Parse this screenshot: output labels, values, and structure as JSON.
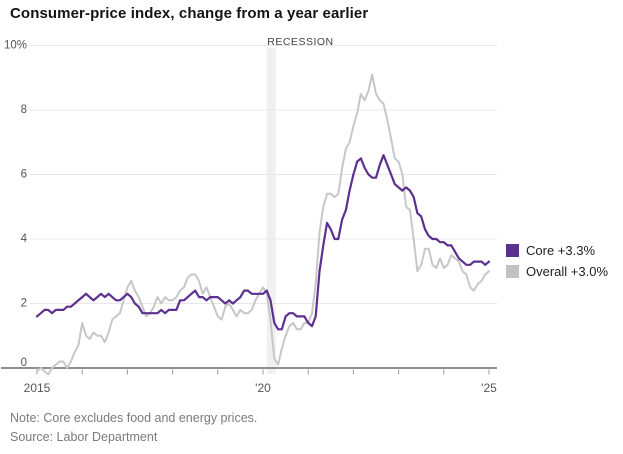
{
  "header": {
    "title": "Consumer-price index, change from a year earlier"
  },
  "chart_data": {
    "type": "line",
    "title": "Consumer-price index, change from a year earlier",
    "x_start": "2015-01",
    "x_end": "2025-01",
    "months_span": 120,
    "ylim": [
      0,
      10
    ],
    "grid": "horizontal",
    "legend_position": "right",
    "y_ticks": [
      {
        "value": 0,
        "label": "0"
      },
      {
        "value": 2,
        "label": "2"
      },
      {
        "value": 4,
        "label": "4"
      },
      {
        "value": 6,
        "label": "6"
      },
      {
        "value": 8,
        "label": "8"
      },
      {
        "value": 10,
        "label": "10%"
      }
    ],
    "x_axis_labels": [
      {
        "label": "2015",
        "month_index": 0
      },
      {
        "label": "'20",
        "month_index": 60
      },
      {
        "label": "'25",
        "month_index": 120
      }
    ],
    "x_tick_month_indexes": [
      0,
      12,
      24,
      36,
      48,
      60,
      72,
      84,
      96,
      108,
      120
    ],
    "recession": {
      "label": "RECESSION",
      "start_month_index": 61,
      "end_month_index": 63
    },
    "series": [
      {
        "name": "Core",
        "legend_label": "Core +3.3%",
        "latest_value": 3.3,
        "color": "#5c308f",
        "values": [
          1.6,
          1.7,
          1.8,
          1.8,
          1.7,
          1.8,
          1.8,
          1.8,
          1.9,
          1.9,
          2.0,
          2.1,
          2.2,
          2.3,
          2.2,
          2.1,
          2.2,
          2.3,
          2.2,
          2.3,
          2.2,
          2.1,
          2.1,
          2.2,
          2.3,
          2.2,
          2.0,
          1.9,
          1.7,
          1.7,
          1.7,
          1.7,
          1.7,
          1.8,
          1.7,
          1.8,
          1.8,
          1.8,
          2.1,
          2.1,
          2.2,
          2.3,
          2.4,
          2.2,
          2.2,
          2.1,
          2.2,
          2.2,
          2.2,
          2.1,
          2.0,
          2.1,
          2.0,
          2.1,
          2.2,
          2.4,
          2.4,
          2.3,
          2.3,
          2.3,
          2.3,
          2.4,
          2.1,
          1.4,
          1.2,
          1.2,
          1.6,
          1.7,
          1.7,
          1.6,
          1.6,
          1.6,
          1.4,
          1.3,
          1.6,
          3.0,
          3.8,
          4.5,
          4.3,
          4.0,
          4.0,
          4.6,
          4.9,
          5.5,
          6.0,
          6.4,
          6.5,
          6.2,
          6.0,
          5.9,
          5.9,
          6.3,
          6.6,
          6.3,
          6.0,
          5.7,
          5.6,
          5.5,
          5.6,
          5.5,
          5.3,
          4.8,
          4.7,
          4.3,
          4.1,
          4.0,
          4.0,
          3.9,
          3.9,
          3.8,
          3.8,
          3.6,
          3.4,
          3.3,
          3.2,
          3.2,
          3.3,
          3.3,
          3.3,
          3.2,
          3.3
        ]
      },
      {
        "name": "Overall",
        "legend_label": "Overall +3.0%",
        "latest_value": 3.0,
        "color": "#c7c7c7",
        "values": [
          -0.1,
          0.0,
          -0.1,
          -0.2,
          0.0,
          0.1,
          0.2,
          0.2,
          0.0,
          0.2,
          0.5,
          0.7,
          1.4,
          1.0,
          0.9,
          1.1,
          1.0,
          1.0,
          0.8,
          1.1,
          1.5,
          1.6,
          1.7,
          2.1,
          2.5,
          2.7,
          2.4,
          2.2,
          1.9,
          1.6,
          1.7,
          1.9,
          2.2,
          2.0,
          2.2,
          2.1,
          2.1,
          2.2,
          2.4,
          2.5,
          2.8,
          2.9,
          2.9,
          2.7,
          2.3,
          2.5,
          2.2,
          1.9,
          1.6,
          1.5,
          1.9,
          2.0,
          1.8,
          1.6,
          1.8,
          1.7,
          1.7,
          1.8,
          2.1,
          2.3,
          2.5,
          2.3,
          1.5,
          0.3,
          0.1,
          0.6,
          1.0,
          1.3,
          1.4,
          1.2,
          1.2,
          1.4,
          1.4,
          1.7,
          2.6,
          4.2,
          5.0,
          5.4,
          5.4,
          5.3,
          5.4,
          6.2,
          6.8,
          7.0,
          7.5,
          7.9,
          8.5,
          8.3,
          8.6,
          9.1,
          8.5,
          8.3,
          8.2,
          7.7,
          7.1,
          6.5,
          6.4,
          6.0,
          5.0,
          4.9,
          4.0,
          3.0,
          3.2,
          3.7,
          3.7,
          3.2,
          3.1,
          3.4,
          3.1,
          3.2,
          3.5,
          3.4,
          3.3,
          3.0,
          2.9,
          2.5,
          2.4,
          2.6,
          2.7,
          2.9,
          3.0
        ]
      }
    ]
  },
  "footer": {
    "note": "Note: Core excludes food and energy prices.",
    "source": "Source: Labor Department"
  },
  "colors": {
    "core_line": "#5c308f",
    "overall_line": "#c7c7c7",
    "overall_swatch": "#c2c2c2",
    "gridline": "#e8e8e8",
    "axis": "#8f8f8f",
    "tick": "#9a9a9a",
    "axis_text": "#555555",
    "recession_band": "#f0f0f0",
    "recession_text": "#444444"
  }
}
